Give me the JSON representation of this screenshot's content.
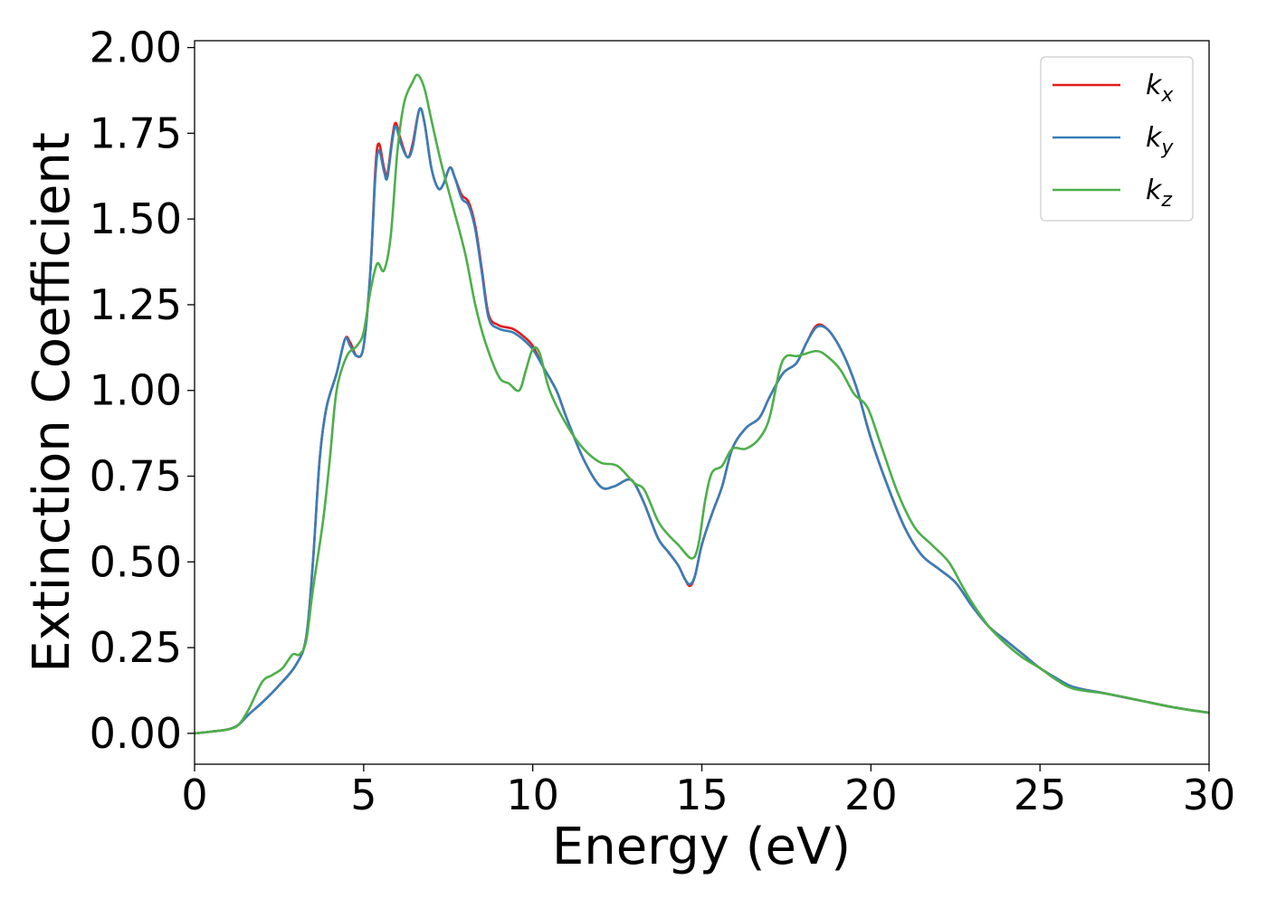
{
  "chart_data": {
    "type": "line",
    "xlabel": "Energy (eV)",
    "ylabel": "Extinction Coefficient",
    "xlim": [
      0,
      30
    ],
    "ylim": [
      -0.09,
      2.02
    ],
    "xticks": [
      0,
      5,
      10,
      15,
      20,
      25,
      30
    ],
    "xtick_labels": [
      "0",
      "5",
      "10",
      "15",
      "20",
      "25",
      "30"
    ],
    "yticks": [
      0.0,
      0.25,
      0.5,
      0.75,
      1.0,
      1.25,
      1.5,
      1.75,
      2.0
    ],
    "ytick_labels": [
      "0.00",
      "0.25",
      "0.50",
      "0.75",
      "1.00",
      "1.25",
      "1.50",
      "1.75",
      "2.00"
    ],
    "grid": false,
    "legend_position": "top-right",
    "series": [
      {
        "name": "k_x",
        "label_main": "k",
        "label_sub": "x",
        "color": "#e41a1c",
        "points": [
          [
            0,
            0.0
          ],
          [
            0.5,
            0.005
          ],
          [
            1.0,
            0.012
          ],
          [
            1.3,
            0.025
          ],
          [
            1.6,
            0.055
          ],
          [
            2.0,
            0.09
          ],
          [
            2.5,
            0.14
          ],
          [
            3.0,
            0.2
          ],
          [
            3.3,
            0.28
          ],
          [
            3.5,
            0.5
          ],
          [
            3.7,
            0.8
          ],
          [
            3.9,
            0.95
          ],
          [
            4.2,
            1.05
          ],
          [
            4.45,
            1.15
          ],
          [
            4.6,
            1.14
          ],
          [
            4.8,
            1.1
          ],
          [
            5.0,
            1.13
          ],
          [
            5.2,
            1.35
          ],
          [
            5.35,
            1.65
          ],
          [
            5.45,
            1.72
          ],
          [
            5.6,
            1.65
          ],
          [
            5.7,
            1.63
          ],
          [
            5.85,
            1.74
          ],
          [
            5.95,
            1.78
          ],
          [
            6.1,
            1.73
          ],
          [
            6.3,
            1.68
          ],
          [
            6.45,
            1.72
          ],
          [
            6.65,
            1.82
          ],
          [
            6.8,
            1.78
          ],
          [
            7.0,
            1.65
          ],
          [
            7.2,
            1.59
          ],
          [
            7.35,
            1.6
          ],
          [
            7.55,
            1.65
          ],
          [
            7.7,
            1.62
          ],
          [
            7.9,
            1.57
          ],
          [
            8.1,
            1.55
          ],
          [
            8.3,
            1.48
          ],
          [
            8.5,
            1.35
          ],
          [
            8.7,
            1.22
          ],
          [
            9.0,
            1.19
          ],
          [
            9.4,
            1.18
          ],
          [
            9.7,
            1.16
          ],
          [
            10.0,
            1.13
          ],
          [
            10.3,
            1.07
          ],
          [
            10.7,
            1.0
          ],
          [
            11.0,
            0.92
          ],
          [
            11.5,
            0.8
          ],
          [
            12.0,
            0.72
          ],
          [
            12.4,
            0.72
          ],
          [
            12.8,
            0.74
          ],
          [
            13.0,
            0.73
          ],
          [
            13.3,
            0.67
          ],
          [
            13.7,
            0.57
          ],
          [
            14.0,
            0.53
          ],
          [
            14.3,
            0.49
          ],
          [
            14.5,
            0.45
          ],
          [
            14.65,
            0.43
          ],
          [
            14.8,
            0.46
          ],
          [
            15.0,
            0.55
          ],
          [
            15.3,
            0.64
          ],
          [
            15.6,
            0.72
          ],
          [
            15.9,
            0.83
          ],
          [
            16.3,
            0.89
          ],
          [
            16.7,
            0.92
          ],
          [
            17.0,
            0.98
          ],
          [
            17.4,
            1.05
          ],
          [
            17.8,
            1.08
          ],
          [
            18.1,
            1.14
          ],
          [
            18.4,
            1.19
          ],
          [
            18.7,
            1.18
          ],
          [
            19.0,
            1.14
          ],
          [
            19.3,
            1.08
          ],
          [
            19.6,
            1.0
          ],
          [
            20.0,
            0.86
          ],
          [
            20.5,
            0.72
          ],
          [
            21.0,
            0.6
          ],
          [
            21.5,
            0.52
          ],
          [
            22.0,
            0.48
          ],
          [
            22.5,
            0.44
          ],
          [
            23.0,
            0.37
          ],
          [
            23.5,
            0.31
          ],
          [
            24.0,
            0.27
          ],
          [
            24.5,
            0.23
          ],
          [
            25.0,
            0.19
          ],
          [
            25.5,
            0.16
          ],
          [
            26.0,
            0.135
          ],
          [
            27.0,
            0.115
          ],
          [
            28.0,
            0.095
          ],
          [
            29.0,
            0.075
          ],
          [
            30.0,
            0.06
          ]
        ]
      },
      {
        "name": "k_y",
        "label_main": "k",
        "label_sub": "y",
        "color": "#377eb8",
        "points": [
          [
            0,
            0.0
          ],
          [
            0.5,
            0.005
          ],
          [
            1.0,
            0.012
          ],
          [
            1.3,
            0.025
          ],
          [
            1.6,
            0.055
          ],
          [
            2.0,
            0.09
          ],
          [
            2.5,
            0.14
          ],
          [
            3.0,
            0.2
          ],
          [
            3.3,
            0.28
          ],
          [
            3.5,
            0.5
          ],
          [
            3.7,
            0.8
          ],
          [
            3.9,
            0.95
          ],
          [
            4.2,
            1.05
          ],
          [
            4.45,
            1.15
          ],
          [
            4.6,
            1.13
          ],
          [
            4.8,
            1.1
          ],
          [
            5.0,
            1.13
          ],
          [
            5.2,
            1.35
          ],
          [
            5.35,
            1.63
          ],
          [
            5.45,
            1.7
          ],
          [
            5.6,
            1.64
          ],
          [
            5.7,
            1.62
          ],
          [
            5.85,
            1.73
          ],
          [
            5.95,
            1.77
          ],
          [
            6.1,
            1.72
          ],
          [
            6.3,
            1.68
          ],
          [
            6.45,
            1.71
          ],
          [
            6.65,
            1.82
          ],
          [
            6.8,
            1.78
          ],
          [
            7.0,
            1.65
          ],
          [
            7.2,
            1.59
          ],
          [
            7.35,
            1.6
          ],
          [
            7.55,
            1.65
          ],
          [
            7.7,
            1.62
          ],
          [
            7.9,
            1.56
          ],
          [
            8.1,
            1.54
          ],
          [
            8.3,
            1.47
          ],
          [
            8.5,
            1.34
          ],
          [
            8.7,
            1.21
          ],
          [
            9.0,
            1.18
          ],
          [
            9.4,
            1.17
          ],
          [
            9.7,
            1.15
          ],
          [
            10.0,
            1.12
          ],
          [
            10.3,
            1.07
          ],
          [
            10.7,
            1.0
          ],
          [
            11.0,
            0.92
          ],
          [
            11.5,
            0.8
          ],
          [
            12.0,
            0.72
          ],
          [
            12.4,
            0.72
          ],
          [
            12.8,
            0.74
          ],
          [
            13.0,
            0.73
          ],
          [
            13.3,
            0.67
          ],
          [
            13.7,
            0.57
          ],
          [
            14.0,
            0.53
          ],
          [
            14.3,
            0.49
          ],
          [
            14.5,
            0.45
          ],
          [
            14.65,
            0.435
          ],
          [
            14.8,
            0.46
          ],
          [
            15.0,
            0.55
          ],
          [
            15.3,
            0.64
          ],
          [
            15.6,
            0.72
          ],
          [
            15.9,
            0.83
          ],
          [
            16.3,
            0.89
          ],
          [
            16.7,
            0.92
          ],
          [
            17.0,
            0.98
          ],
          [
            17.4,
            1.05
          ],
          [
            17.8,
            1.08
          ],
          [
            18.1,
            1.14
          ],
          [
            18.4,
            1.185
          ],
          [
            18.7,
            1.18
          ],
          [
            19.0,
            1.14
          ],
          [
            19.3,
            1.08
          ],
          [
            19.6,
            1.0
          ],
          [
            20.0,
            0.86
          ],
          [
            20.5,
            0.72
          ],
          [
            21.0,
            0.6
          ],
          [
            21.5,
            0.52
          ],
          [
            22.0,
            0.48
          ],
          [
            22.5,
            0.44
          ],
          [
            23.0,
            0.37
          ],
          [
            23.5,
            0.31
          ],
          [
            24.0,
            0.27
          ],
          [
            24.5,
            0.23
          ],
          [
            25.0,
            0.19
          ],
          [
            25.5,
            0.16
          ],
          [
            26.0,
            0.135
          ],
          [
            27.0,
            0.115
          ],
          [
            28.0,
            0.095
          ],
          [
            29.0,
            0.075
          ],
          [
            30.0,
            0.06
          ]
        ]
      },
      {
        "name": "k_z",
        "label_main": "k",
        "label_sub": "z",
        "color": "#4daf4a",
        "points": [
          [
            0,
            0.0
          ],
          [
            0.5,
            0.005
          ],
          [
            1.0,
            0.012
          ],
          [
            1.3,
            0.025
          ],
          [
            1.6,
            0.07
          ],
          [
            2.0,
            0.15
          ],
          [
            2.3,
            0.17
          ],
          [
            2.6,
            0.19
          ],
          [
            2.9,
            0.23
          ],
          [
            3.1,
            0.23
          ],
          [
            3.3,
            0.27
          ],
          [
            3.5,
            0.42
          ],
          [
            3.8,
            0.62
          ],
          [
            4.0,
            0.8
          ],
          [
            4.2,
            1.0
          ],
          [
            4.5,
            1.1
          ],
          [
            4.8,
            1.13
          ],
          [
            5.0,
            1.17
          ],
          [
            5.2,
            1.29
          ],
          [
            5.4,
            1.37
          ],
          [
            5.6,
            1.35
          ],
          [
            5.8,
            1.45
          ],
          [
            6.0,
            1.7
          ],
          [
            6.2,
            1.84
          ],
          [
            6.45,
            1.9
          ],
          [
            6.6,
            1.92
          ],
          [
            6.8,
            1.88
          ],
          [
            7.0,
            1.79
          ],
          [
            7.3,
            1.66
          ],
          [
            7.6,
            1.55
          ],
          [
            8.0,
            1.4
          ],
          [
            8.3,
            1.25
          ],
          [
            8.6,
            1.14
          ],
          [
            9.0,
            1.04
          ],
          [
            9.3,
            1.02
          ],
          [
            9.6,
            1.0
          ],
          [
            9.8,
            1.06
          ],
          [
            10.0,
            1.12
          ],
          [
            10.2,
            1.11
          ],
          [
            10.5,
            1.0
          ],
          [
            11.0,
            0.9
          ],
          [
            11.5,
            0.83
          ],
          [
            12.0,
            0.79
          ],
          [
            12.5,
            0.78
          ],
          [
            13.0,
            0.73
          ],
          [
            13.3,
            0.71
          ],
          [
            13.7,
            0.62
          ],
          [
            14.0,
            0.58
          ],
          [
            14.3,
            0.55
          ],
          [
            14.7,
            0.51
          ],
          [
            14.9,
            0.55
          ],
          [
            15.1,
            0.68
          ],
          [
            15.3,
            0.76
          ],
          [
            15.6,
            0.78
          ],
          [
            15.9,
            0.83
          ],
          [
            16.3,
            0.83
          ],
          [
            16.7,
            0.86
          ],
          [
            17.0,
            0.92
          ],
          [
            17.3,
            1.06
          ],
          [
            17.5,
            1.1
          ],
          [
            17.8,
            1.1
          ],
          [
            18.0,
            1.105
          ],
          [
            18.4,
            1.115
          ],
          [
            18.7,
            1.1
          ],
          [
            19.1,
            1.06
          ],
          [
            19.5,
            0.99
          ],
          [
            19.9,
            0.95
          ],
          [
            20.3,
            0.84
          ],
          [
            20.8,
            0.7
          ],
          [
            21.3,
            0.6
          ],
          [
            21.8,
            0.55
          ],
          [
            22.3,
            0.5
          ],
          [
            22.7,
            0.43
          ],
          [
            23.0,
            0.38
          ],
          [
            23.5,
            0.31
          ],
          [
            24.0,
            0.26
          ],
          [
            24.5,
            0.22
          ],
          [
            25.0,
            0.19
          ],
          [
            25.5,
            0.155
          ],
          [
            26.0,
            0.13
          ],
          [
            27.0,
            0.115
          ],
          [
            28.0,
            0.095
          ],
          [
            29.0,
            0.075
          ],
          [
            30.0,
            0.06
          ]
        ]
      }
    ]
  }
}
